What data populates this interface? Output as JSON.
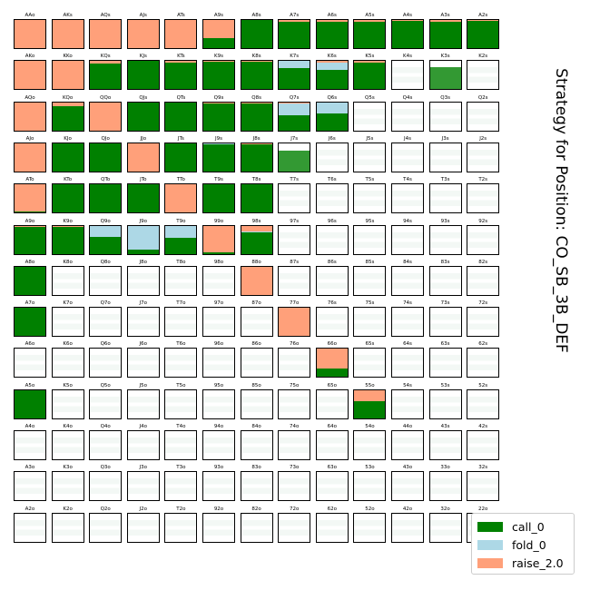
{
  "chart_data": {
    "type": "heatmap",
    "title": "Strategy for Position: CO_SB_3B_DEF",
    "ranks": [
      "A",
      "K",
      "Q",
      "J",
      "T",
      "9",
      "8",
      "7",
      "6",
      "5",
      "4",
      "3",
      "2"
    ],
    "actions": [
      {
        "name": "call_0",
        "color": "#008000"
      },
      {
        "name": "fold_0",
        "color": "#add8e6"
      },
      {
        "name": "raise_2.0",
        "color": "#ffa07a"
      }
    ],
    "legend_position": "lower-right",
    "rows": [
      {
        "hands": [
          "AAo",
          "AKs",
          "AQs",
          "AJs",
          "ATs",
          "A9s",
          "A8s",
          "A7s",
          "A6s",
          "A5s",
          "A4s",
          "A3s",
          "A2s"
        ],
        "strategy": [
          [
            0,
            0,
            1
          ],
          [
            0,
            0,
            1
          ],
          [
            0,
            0,
            1
          ],
          [
            0,
            0,
            1
          ],
          [
            0,
            0,
            1
          ],
          [
            0.35,
            0,
            0.65
          ],
          [
            1,
            0,
            0
          ],
          [
            0.95,
            0,
            0.05
          ],
          [
            0.95,
            0,
            0.05
          ],
          [
            0.95,
            0,
            0.05
          ],
          [
            0.97,
            0,
            0.03
          ],
          [
            0.92,
            0,
            0.08
          ],
          [
            0.97,
            0,
            0.03
          ]
        ]
      },
      {
        "hands": [
          "AKo",
          "KKo",
          "KQs",
          "KJs",
          "KTs",
          "K9s",
          "K8s",
          "K7s",
          "K6s",
          "K5s",
          "K4s",
          "K3s",
          "K2s"
        ],
        "strategy": [
          [
            0,
            0,
            1
          ],
          [
            0,
            0,
            1
          ],
          [
            0.9,
            0,
            0.1
          ],
          [
            1,
            0,
            0
          ],
          [
            0.93,
            0,
            0.07
          ],
          [
            0.97,
            0,
            0.03
          ],
          [
            0.97,
            0,
            0.03
          ],
          [
            0.75,
            0.25,
            0
          ],
          [
            0.7,
            0.25,
            0.05
          ],
          [
            0.95,
            0,
            0.05
          ],
          [
            0,
            0,
            0
          ],
          [
            0.8,
            0,
            0
          ],
          [
            0,
            0,
            0
          ]
        ]
      },
      {
        "hands": [
          "AQo",
          "KQo",
          "QQo",
          "QJs",
          "QTs",
          "Q9s",
          "Q8s",
          "Q7s",
          "Q6s",
          "Q5s",
          "Q4s",
          "Q3s",
          "Q2s"
        ],
        "strategy": [
          [
            0,
            0,
            1
          ],
          [
            0.85,
            0,
            0.15
          ],
          [
            0,
            0,
            1
          ],
          [
            1,
            0,
            0
          ],
          [
            1,
            0,
            0
          ],
          [
            0.97,
            0,
            0.03
          ],
          [
            0.97,
            0,
            0.03
          ],
          [
            0.55,
            0.4,
            0.05
          ],
          [
            0.6,
            0.4,
            0
          ],
          [
            0,
            0,
            0
          ],
          [
            0,
            0,
            0
          ],
          [
            0,
            0,
            0
          ],
          [
            0,
            0,
            0
          ]
        ]
      },
      {
        "hands": [
          "AJo",
          "KJo",
          "QJo",
          "JJo",
          "JTs",
          "J9s",
          "J8s",
          "J7s",
          "J6s",
          "J5s",
          "J4s",
          "J3s",
          "J2s"
        ],
        "strategy": [
          [
            0,
            0,
            1
          ],
          [
            1,
            0,
            0
          ],
          [
            1,
            0,
            0
          ],
          [
            0,
            0,
            1
          ],
          [
            1,
            0,
            0
          ],
          [
            0.95,
            0.05,
            0
          ],
          [
            0.95,
            0,
            0.05
          ],
          [
            0.75,
            0,
            0
          ],
          [
            0,
            0,
            0
          ],
          [
            0,
            0,
            0
          ],
          [
            0,
            0,
            0
          ],
          [
            0,
            0,
            0
          ],
          [
            0,
            0,
            0
          ]
        ]
      },
      {
        "hands": [
          "ATo",
          "KTo",
          "QTo",
          "JTo",
          "TTo",
          "T9s",
          "T8s",
          "T7s",
          "T6s",
          "T5s",
          "T4s",
          "T3s",
          "T2s"
        ],
        "strategy": [
          [
            0.05,
            0,
            0.95
          ],
          [
            1,
            0,
            0
          ],
          [
            1,
            0,
            0
          ],
          [
            1,
            0,
            0
          ],
          [
            0,
            0,
            1
          ],
          [
            1,
            0,
            0
          ],
          [
            1,
            0,
            0
          ],
          [
            0,
            0,
            0
          ],
          [
            0,
            0,
            0
          ],
          [
            0,
            0,
            0
          ],
          [
            0,
            0,
            0
          ],
          [
            0,
            0,
            0
          ],
          [
            0,
            0,
            0
          ]
        ]
      },
      {
        "hands": [
          "A9o",
          "K9o",
          "Q9o",
          "J9o",
          "T9o",
          "99o",
          "98s",
          "97s",
          "96s",
          "95s",
          "94s",
          "93s",
          "92s"
        ],
        "strategy": [
          [
            0.97,
            0,
            0.03
          ],
          [
            0.97,
            0,
            0.03
          ],
          [
            0.6,
            0.4,
            0
          ],
          [
            0.15,
            0.85,
            0
          ],
          [
            0.55,
            0.45,
            0
          ],
          [
            0.05,
            0,
            0.95
          ],
          [
            0.75,
            0.05,
            0.2
          ],
          [
            0,
            0,
            0
          ],
          [
            0,
            0,
            0
          ],
          [
            0,
            0,
            0
          ],
          [
            0,
            0,
            0
          ],
          [
            0,
            0,
            0
          ],
          [
            0,
            0,
            0
          ]
        ]
      },
      {
        "hands": [
          "A8o",
          "K8o",
          "Q8o",
          "J8o",
          "T8o",
          "98o",
          "88o",
          "87s",
          "86s",
          "85s",
          "84s",
          "83s",
          "82s"
        ],
        "strategy": [
          [
            1,
            0,
            0
          ],
          [
            0,
            0,
            0
          ],
          [
            0,
            0,
            0
          ],
          [
            0,
            0,
            0
          ],
          [
            0,
            0,
            0
          ],
          [
            0,
            0,
            0
          ],
          [
            0,
            0,
            1
          ],
          [
            0,
            0,
            0
          ],
          [
            0,
            0,
            0
          ],
          [
            0,
            0,
            0
          ],
          [
            0,
            0,
            0
          ],
          [
            0,
            0,
            0
          ],
          [
            0,
            0,
            0
          ]
        ]
      },
      {
        "hands": [
          "A7o",
          "K7o",
          "Q7o",
          "J7o",
          "T7o",
          "97o",
          "87o",
          "77o",
          "76s",
          "75s",
          "74s",
          "73s",
          "72s"
        ],
        "strategy": [
          [
            1,
            0,
            0
          ],
          [
            0,
            0,
            0
          ],
          [
            0,
            0,
            0
          ],
          [
            0,
            0,
            0
          ],
          [
            0,
            0,
            0
          ],
          [
            0,
            0,
            0
          ],
          [
            0,
            0,
            0
          ],
          [
            0,
            0,
            1
          ],
          [
            0,
            0,
            0
          ],
          [
            0,
            0,
            0
          ],
          [
            0,
            0,
            0
          ],
          [
            0,
            0,
            0
          ],
          [
            0,
            0,
            0
          ]
        ]
      },
      {
        "hands": [
          "A6o",
          "K6o",
          "Q6o",
          "J6o",
          "T6o",
          "96o",
          "86o",
          "76o",
          "66o",
          "65s",
          "64s",
          "63s",
          "62s"
        ],
        "strategy": [
          [
            0,
            0,
            0
          ],
          [
            0,
            0,
            0
          ],
          [
            0,
            0,
            0
          ],
          [
            0,
            0,
            0
          ],
          [
            0,
            0,
            0
          ],
          [
            0,
            0,
            0
          ],
          [
            0,
            0,
            0
          ],
          [
            0,
            0,
            0
          ],
          [
            0.3,
            0,
            0.7
          ],
          [
            0,
            0,
            0
          ],
          [
            0,
            0,
            0
          ],
          [
            0,
            0,
            0
          ],
          [
            0,
            0,
            0
          ]
        ]
      },
      {
        "hands": [
          "A5o",
          "K5o",
          "Q5o",
          "J5o",
          "T5o",
          "95o",
          "85o",
          "75o",
          "65o",
          "55o",
          "54s",
          "53s",
          "52s"
        ],
        "strategy": [
          [
            1,
            0,
            0
          ],
          [
            0,
            0,
            0
          ],
          [
            0,
            0,
            0
          ],
          [
            0,
            0,
            0
          ],
          [
            0,
            0,
            0
          ],
          [
            0,
            0,
            0
          ],
          [
            0,
            0,
            0
          ],
          [
            0,
            0,
            0
          ],
          [
            0,
            0,
            0
          ],
          [
            0.6,
            0,
            0.4
          ],
          [
            0,
            0,
            0
          ],
          [
            0,
            0,
            0
          ],
          [
            0,
            0,
            0
          ]
        ]
      },
      {
        "hands": [
          "A4o",
          "K4o",
          "Q4o",
          "J4o",
          "T4o",
          "94o",
          "84o",
          "74o",
          "64o",
          "54o",
          "44o",
          "43s",
          "42s"
        ],
        "strategy": [
          [
            0,
            0,
            0
          ],
          [
            0,
            0,
            0
          ],
          [
            0,
            0,
            0
          ],
          [
            0,
            0,
            0
          ],
          [
            0,
            0,
            0
          ],
          [
            0,
            0,
            0
          ],
          [
            0,
            0,
            0
          ],
          [
            0,
            0,
            0
          ],
          [
            0,
            0,
            0
          ],
          [
            0,
            0,
            0
          ],
          [
            0,
            0,
            0
          ],
          [
            0,
            0,
            0
          ],
          [
            0,
            0,
            0
          ]
        ]
      },
      {
        "hands": [
          "A3o",
          "K3o",
          "Q3o",
          "J3o",
          "T3o",
          "93o",
          "83o",
          "73o",
          "63o",
          "53o",
          "43o",
          "33o",
          "32s"
        ],
        "strategy": [
          [
            0,
            0,
            0
          ],
          [
            0,
            0,
            0
          ],
          [
            0,
            0,
            0
          ],
          [
            0,
            0,
            0
          ],
          [
            0,
            0,
            0
          ],
          [
            0,
            0,
            0
          ],
          [
            0,
            0,
            0
          ],
          [
            0,
            0,
            0
          ],
          [
            0,
            0,
            0
          ],
          [
            0,
            0,
            0
          ],
          [
            0,
            0,
            0
          ],
          [
            0,
            0,
            0
          ],
          [
            0,
            0,
            0
          ]
        ]
      },
      {
        "hands": [
          "A2o",
          "K2o",
          "Q2o",
          "J2o",
          "T2o",
          "92o",
          "82o",
          "72o",
          "62o",
          "52o",
          "42o",
          "32o",
          "22o"
        ],
        "strategy": [
          [
            0,
            0,
            0
          ],
          [
            0,
            0,
            0
          ],
          [
            0,
            0,
            0
          ],
          [
            0,
            0,
            0
          ],
          [
            0,
            0,
            0
          ],
          [
            0,
            0,
            0
          ],
          [
            0,
            0,
            0
          ],
          [
            0,
            0,
            0
          ],
          [
            0,
            0,
            0
          ],
          [
            0,
            0,
            0
          ],
          [
            0,
            0,
            0
          ],
          [
            0,
            0,
            0
          ],
          [
            0,
            0,
            0
          ]
        ]
      }
    ]
  }
}
